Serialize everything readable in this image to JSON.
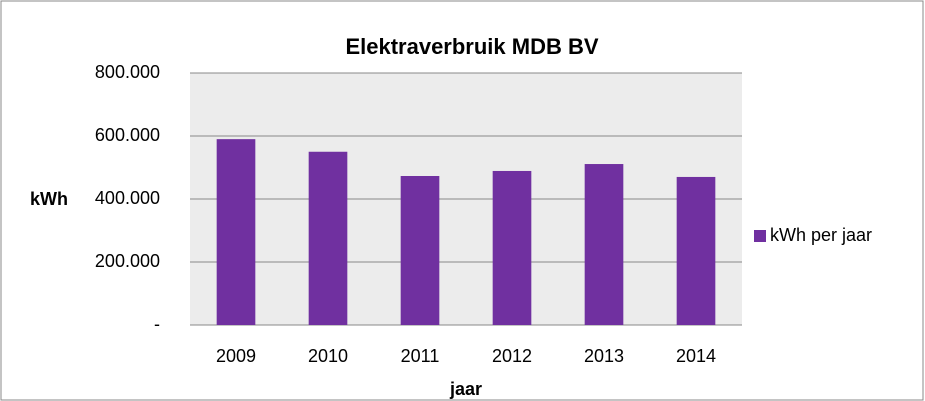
{
  "chart_data": {
    "type": "bar",
    "title": "Elektraverbruik MDB BV",
    "x_label": "jaar",
    "y_label": "kWh",
    "categories": [
      "2009",
      "2010",
      "2011",
      "2012",
      "2013",
      "2014"
    ],
    "series": [
      {
        "name": "kWh per jaar",
        "color": "#7030a0",
        "values": [
          590000,
          550000,
          473000,
          489000,
          511000,
          470000
        ]
      }
    ],
    "ylim": [
      0,
      800000
    ],
    "yticks": [
      {
        "value": 0,
        "label": "-"
      },
      {
        "value": 200000,
        "label": "200.000"
      },
      {
        "value": 400000,
        "label": "400.000"
      },
      {
        "value": 600000,
        "label": "600.000"
      },
      {
        "value": 800000,
        "label": "800.000"
      }
    ],
    "grid": true,
    "legend": "right"
  }
}
